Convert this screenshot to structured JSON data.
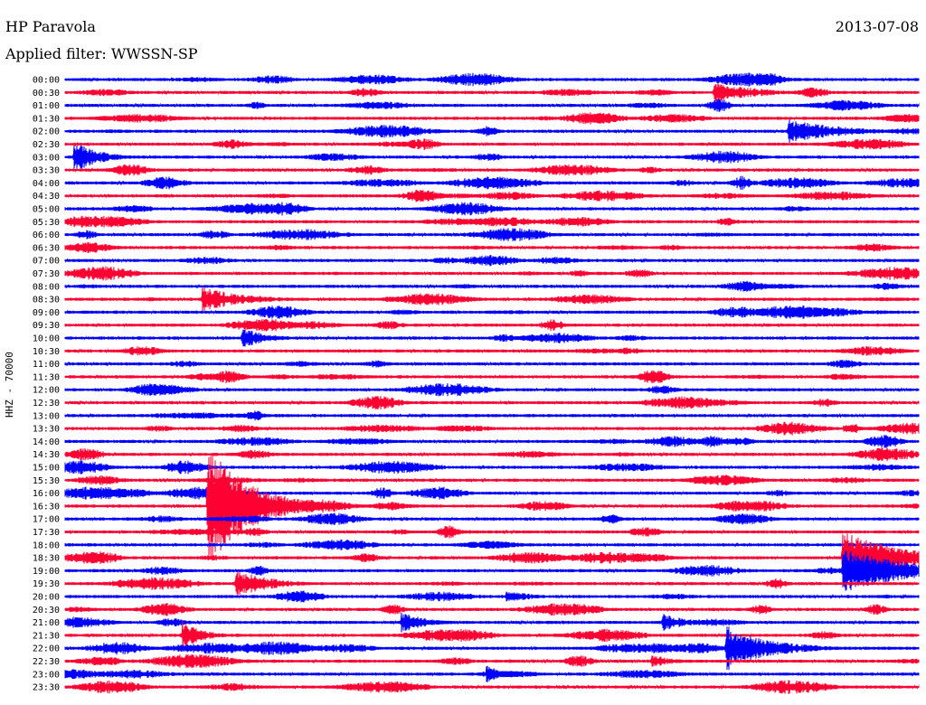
{
  "header": {
    "station": "HP Paravola",
    "date": "2013-07-08",
    "filter_label": "Applied filter: WWSSN-SP"
  },
  "chart_data": {
    "type": "line",
    "title": "HP Paravola",
    "subtitle": "Applied filter: WWSSN-SP",
    "ylabel": "HHZ - 70000",
    "trace_interval_minutes": 30,
    "row_labels": [
      "00:00",
      "00:30",
      "01:00",
      "01:30",
      "02:00",
      "02:30",
      "03:00",
      "03:30",
      "04:00",
      "04:30",
      "05:00",
      "05:30",
      "06:00",
      "06:30",
      "07:00",
      "07:30",
      "08:00",
      "08:30",
      "09:00",
      "09:30",
      "10:00",
      "10:30",
      "11:00",
      "11:30",
      "12:00",
      "12:30",
      "13:00",
      "13:30",
      "14:00",
      "14:30",
      "15:00",
      "15:30",
      "16:00",
      "16:30",
      "17:00",
      "17:30",
      "18:00",
      "18:30",
      "19:00",
      "19:30",
      "20:00",
      "20:30",
      "21:00",
      "21:30",
      "22:00",
      "22:30",
      "23:00",
      "23:30"
    ],
    "colors": [
      "#0000ff",
      "#ff0033"
    ],
    "events": [
      {
        "row": "00:30",
        "minute": 22.8,
        "amplitude": 12,
        "duration_minutes": 2.5
      },
      {
        "row": "02:00",
        "minute": 25.4,
        "amplitude": 14,
        "duration_minutes": 3.0
      },
      {
        "row": "03:00",
        "minute": 0.3,
        "amplitude": 18,
        "duration_minutes": 1.5
      },
      {
        "row": "08:30",
        "minute": 4.8,
        "amplitude": 14,
        "duration_minutes": 2.5
      },
      {
        "row": "10:00",
        "minute": 6.2,
        "amplitude": 12,
        "duration_minutes": 1.5
      },
      {
        "row": "16:30",
        "minute": 5.0,
        "amplitude": 70,
        "duration_minutes": 2.5
      },
      {
        "row": "18:30",
        "minute": 27.3,
        "amplitude": 30,
        "duration_minutes": 3.5
      },
      {
        "row": "19:00",
        "minute": 27.3,
        "amplitude": 28,
        "duration_minutes": 3.5
      },
      {
        "row": "19:30",
        "minute": 6.0,
        "amplitude": 16,
        "duration_minutes": 2.0
      },
      {
        "row": "20:00",
        "minute": 15.5,
        "amplitude": 8,
        "duration_minutes": 1.5
      },
      {
        "row": "21:00",
        "minute": 11.8,
        "amplitude": 12,
        "duration_minutes": 1.5
      },
      {
        "row": "21:30",
        "minute": 4.1,
        "amplitude": 16,
        "duration_minutes": 1.2
      },
      {
        "row": "22:00",
        "minute": 23.2,
        "amplitude": 26,
        "duration_minutes": 2.5
      },
      {
        "row": "22:30",
        "minute": 20.6,
        "amplitude": 8,
        "duration_minutes": 1.2
      },
      {
        "row": "23:00",
        "minute": 14.8,
        "amplitude": 10,
        "duration_minutes": 1.0
      },
      {
        "row": "21:00",
        "minute": 21.0,
        "amplitude": 10,
        "duration_minutes": 1.5
      }
    ],
    "grid": false,
    "legend": "none"
  }
}
